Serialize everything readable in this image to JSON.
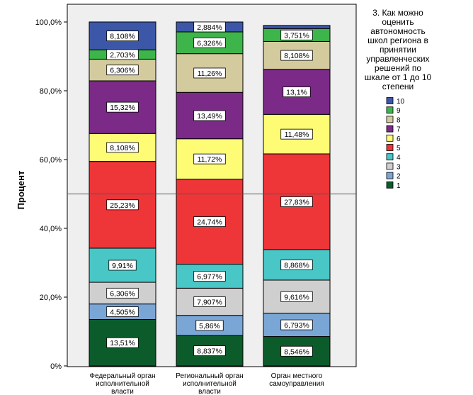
{
  "chart_data": {
    "type": "stacked-bar",
    "ylabel": "Процент",
    "ylim": [
      0,
      100
    ],
    "yticks": [
      "0%",
      "20,0%",
      "40,0%",
      "60,0%",
      "80,0%",
      "100,0%"
    ],
    "reference_line": 50,
    "legend_title": "3. Как можно оценить автономность школ  региона в принятии управленческих решений по шкале от 1 до 10 степени",
    "legend_title_lines": [
      "3. Как можно",
      "оценить",
      "автономность",
      "школ  региона в",
      "принятии",
      "управленческих",
      "решений по",
      "шкале от 1 до 10",
      "степени"
    ],
    "legend_position": "right",
    "categories": [
      {
        "name": "Федеральный орган исполнительной власти",
        "lines": [
          "Федеральный орган",
          "исполнительной",
          "власти"
        ]
      },
      {
        "name": "Региональный орган исполнительной власти",
        "lines": [
          "Региональный орган",
          "исполнительной",
          "власти"
        ]
      },
      {
        "name": "Орган местного самоуправления",
        "lines": [
          "Орган местного",
          "самоуправления"
        ]
      }
    ],
    "series": [
      {
        "name": "1",
        "color": "#0c5c2b",
        "values": [
          13.51,
          8.837,
          8.546
        ],
        "labels": [
          "13,51%",
          "8,837%",
          "8,546%"
        ]
      },
      {
        "name": "2",
        "color": "#7aa6d6",
        "values": [
          4.505,
          5.86,
          6.793
        ],
        "labels": [
          "4,505%",
          "5,86%",
          "6,793%"
        ]
      },
      {
        "name": "3",
        "color": "#cfcfcf",
        "values": [
          6.306,
          7.907,
          9.616
        ],
        "labels": [
          "6,306%",
          "7,907%",
          "9,616%"
        ]
      },
      {
        "name": "4",
        "color": "#49c6c6",
        "values": [
          9.91,
          6.977,
          8.868
        ],
        "labels": [
          "9,91%",
          "6,977%",
          "8,868%"
        ]
      },
      {
        "name": "5",
        "color": "#ee3538",
        "values": [
          25.23,
          24.74,
          27.83
        ],
        "labels": [
          "25,23%",
          "24,74%",
          "27,83%"
        ]
      },
      {
        "name": "6",
        "color": "#fefb75",
        "values": [
          8.108,
          11.72,
          11.48
        ],
        "labels": [
          "8,108%",
          "11,72%",
          "11,48%"
        ]
      },
      {
        "name": "7",
        "color": "#7b2a87",
        "values": [
          15.32,
          13.49,
          13.1
        ],
        "labels": [
          "15,32%",
          "13,49%",
          "13,1%"
        ]
      },
      {
        "name": "8",
        "color": "#d3cb9d",
        "values": [
          6.306,
          11.26,
          8.108
        ],
        "labels": [
          "6,306%",
          "11,26%",
          "8,108%"
        ]
      },
      {
        "name": "9",
        "color": "#3db54a",
        "values": [
          2.703,
          6.326,
          3.751
        ],
        "labels": [
          "2,703%",
          "6,326%",
          "3,751%"
        ]
      },
      {
        "name": "10",
        "color": "#3d57a8",
        "values": [
          8.108,
          2.884,
          0.905
        ],
        "labels": [
          "8,108%",
          "2,884%",
          ""
        ]
      }
    ]
  }
}
